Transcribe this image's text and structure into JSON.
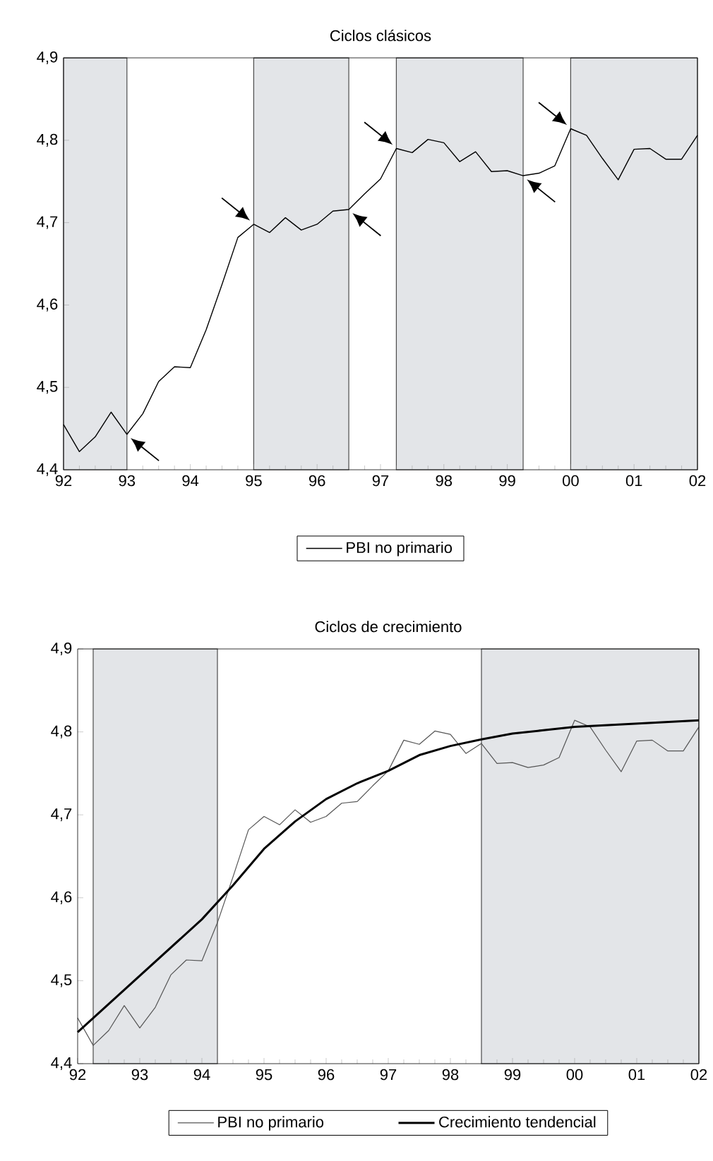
{
  "chart_data": [
    {
      "type": "line",
      "title": "Ciclos clásicos",
      "x": [
        1992,
        1992.25,
        1992.5,
        1992.75,
        1993,
        1993.25,
        1993.5,
        1993.75,
        1994,
        1994.25,
        1994.5,
        1994.75,
        1995,
        1995.25,
        1995.5,
        1995.75,
        1996,
        1996.25,
        1996.5,
        1996.75,
        1997,
        1997.25,
        1997.5,
        1997.75,
        1998,
        1998.25,
        1998.5,
        1998.75,
        1999,
        1999.25,
        1999.5,
        1999.75,
        2000,
        2000.25,
        2000.5,
        2000.75,
        2001,
        2001.25,
        2001.5,
        2001.75,
        2002
      ],
      "series": [
        {
          "name": "PBI no primario",
          "color": "#000000",
          "values": [
            4.455,
            4.422,
            4.44,
            4.47,
            4.443,
            4.468,
            4.507,
            4.525,
            4.524,
            4.57,
            4.625,
            4.682,
            4.698,
            4.688,
            4.706,
            4.691,
            4.698,
            4.714,
            4.716,
            4.735,
            4.753,
            4.79,
            4.785,
            4.801,
            4.797,
            4.774,
            4.786,
            4.762,
            4.763,
            4.757,
            4.76,
            4.769,
            4.814,
            4.806,
            4.778,
            4.752,
            4.789,
            4.79,
            4.777,
            4.777,
            4.806
          ]
        }
      ],
      "xlim": [
        1992,
        2002
      ],
      "ylim": [
        4.4,
        4.9
      ],
      "xticks": [
        {
          "value": 1992,
          "label": "92"
        },
        {
          "value": 1993,
          "label": "93"
        },
        {
          "value": 1994,
          "label": "94"
        },
        {
          "value": 1995,
          "label": "95"
        },
        {
          "value": 1996,
          "label": "96"
        },
        {
          "value": 1997,
          "label": "97"
        },
        {
          "value": 1998,
          "label": "98"
        },
        {
          "value": 1999,
          "label": "99"
        },
        {
          "value": 2000,
          "label": "00"
        },
        {
          "value": 2001,
          "label": "01"
        },
        {
          "value": 2002,
          "label": "02"
        }
      ],
      "yticks": [
        {
          "value": 4.4,
          "label": "4,4"
        },
        {
          "value": 4.5,
          "label": "4,5"
        },
        {
          "value": 4.6,
          "label": "4,6"
        },
        {
          "value": 4.7,
          "label": "4,7"
        },
        {
          "value": 4.8,
          "label": "4,8"
        },
        {
          "value": 4.9,
          "label": "4,9"
        }
      ],
      "bands": [
        {
          "axis": "x",
          "from": 1992,
          "to": 1993,
          "color": "#e3e5e8"
        },
        {
          "axis": "x",
          "from": 1995,
          "to": 1996.5,
          "color": "#e3e5e8"
        },
        {
          "axis": "x",
          "from": 1997.25,
          "to": 1999.25,
          "color": "#e3e5e8"
        },
        {
          "axis": "x",
          "from": 2000,
          "to": 2002,
          "color": "#e3e5e8"
        }
      ],
      "legend": "bottom"
    },
    {
      "type": "line",
      "title": "Ciclos de crecimiento",
      "x": [
        1992,
        1992.25,
        1992.5,
        1992.75,
        1993,
        1993.25,
        1993.5,
        1993.75,
        1994,
        1994.25,
        1994.5,
        1994.75,
        1995,
        1995.25,
        1995.5,
        1995.75,
        1996,
        1996.25,
        1996.5,
        1996.75,
        1997,
        1997.25,
        1997.5,
        1997.75,
        1998,
        1998.25,
        1998.5,
        1998.75,
        1999,
        1999.25,
        1999.5,
        1999.75,
        2000,
        2000.25,
        2000.5,
        2000.75,
        2001,
        2001.25,
        2001.5,
        2001.75,
        2002
      ],
      "series": [
        {
          "name": "PBI no primario",
          "color": "#555555",
          "values": [
            4.455,
            4.422,
            4.44,
            4.47,
            4.443,
            4.468,
            4.507,
            4.525,
            4.524,
            4.57,
            4.625,
            4.682,
            4.698,
            4.688,
            4.706,
            4.691,
            4.698,
            4.714,
            4.716,
            4.735,
            4.753,
            4.79,
            4.785,
            4.801,
            4.797,
            4.774,
            4.786,
            4.762,
            4.763,
            4.757,
            4.76,
            4.769,
            4.814,
            4.806,
            4.778,
            4.752,
            4.789,
            4.79,
            4.777,
            4.777,
            4.806
          ]
        },
        {
          "name": "Crecimiento tendencial",
          "color": "#000000",
          "x": [
            1992,
            1992.5,
            1993,
            1993.5,
            1994,
            1994.5,
            1995,
            1995.5,
            1996,
            1996.5,
            1997,
            1997.5,
            1998,
            1998.5,
            1999,
            1999.5,
            2000,
            2000.5,
            2001,
            2001.5,
            2002
          ],
          "values": [
            4.438,
            4.472,
            4.506,
            4.54,
            4.574,
            4.615,
            4.659,
            4.692,
            4.719,
            4.738,
            4.753,
            4.772,
            4.783,
            4.791,
            4.798,
            4.802,
            4.806,
            4.808,
            4.81,
            4.812,
            4.814
          ]
        }
      ],
      "xlim": [
        1992,
        2002
      ],
      "ylim": [
        4.4,
        4.9
      ],
      "xticks": [
        {
          "value": 1992,
          "label": "92"
        },
        {
          "value": 1993,
          "label": "93"
        },
        {
          "value": 1994,
          "label": "94"
        },
        {
          "value": 1995,
          "label": "95"
        },
        {
          "value": 1996,
          "label": "96"
        },
        {
          "value": 1997,
          "label": "97"
        },
        {
          "value": 1998,
          "label": "98"
        },
        {
          "value": 1999,
          "label": "99"
        },
        {
          "value": 2000,
          "label": "00"
        },
        {
          "value": 2001,
          "label": "01"
        },
        {
          "value": 2002,
          "label": "02"
        }
      ],
      "yticks": [
        {
          "value": 4.4,
          "label": "4,4"
        },
        {
          "value": 4.5,
          "label": "4,5"
        },
        {
          "value": 4.6,
          "label": "4,6"
        },
        {
          "value": 4.7,
          "label": "4,7"
        },
        {
          "value": 4.8,
          "label": "4,8"
        },
        {
          "value": 4.9,
          "label": "4,9"
        }
      ],
      "bands": [
        {
          "axis": "x",
          "from": 1992.25,
          "to": 1994.25,
          "color": "#e3e5e8"
        },
        {
          "axis": "x",
          "from": 1998.5,
          "to": 2002,
          "color": "#e3e5e8"
        }
      ],
      "legend": "bottom"
    }
  ]
}
